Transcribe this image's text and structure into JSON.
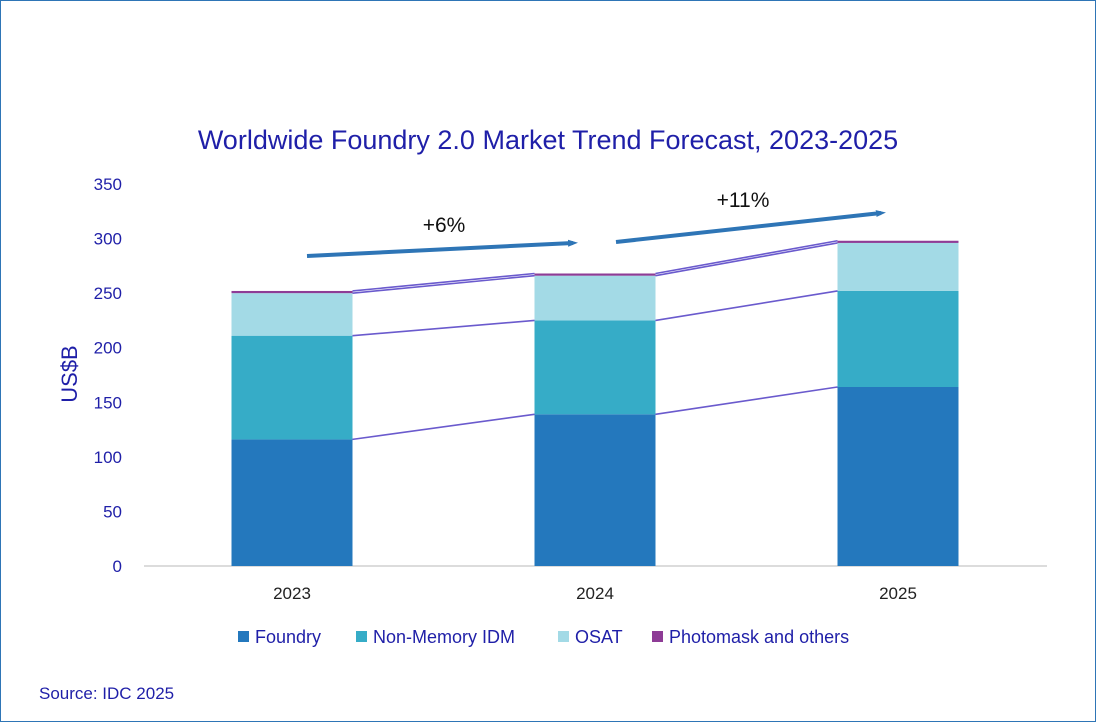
{
  "chart_data": {
    "type": "bar",
    "stacked": true,
    "title": "Worldwide Foundry 2.0 Market Trend Forecast, 2023-2025",
    "xlabel": "",
    "ylabel": "US$B",
    "ylim": [
      0,
      350
    ],
    "yticks": [
      0,
      50,
      100,
      150,
      200,
      250,
      300,
      350
    ],
    "categories": [
      "2023",
      "2024",
      "2025"
    ],
    "series": [
      {
        "name": "Foundry",
        "color": "#2478BD",
        "values": [
          116,
          139,
          164
        ]
      },
      {
        "name": "Non-Memory IDM",
        "color": "#36ACC7",
        "values": [
          95,
          86,
          88
        ]
      },
      {
        "name": "OSAT",
        "color": "#A3DAE6",
        "values": [
          39,
          41,
          44
        ]
      },
      {
        "name": "Photomask and others",
        "color": "#8E3C96",
        "values": [
          2,
          2,
          2
        ]
      }
    ],
    "annotations": [
      {
        "text": "+6%",
        "from": "2023",
        "to": "2024"
      },
      {
        "text": "+11%",
        "from": "2024",
        "to": "2025"
      }
    ],
    "legend_position": "bottom",
    "grid": false
  },
  "source": "Source: IDC 2025"
}
